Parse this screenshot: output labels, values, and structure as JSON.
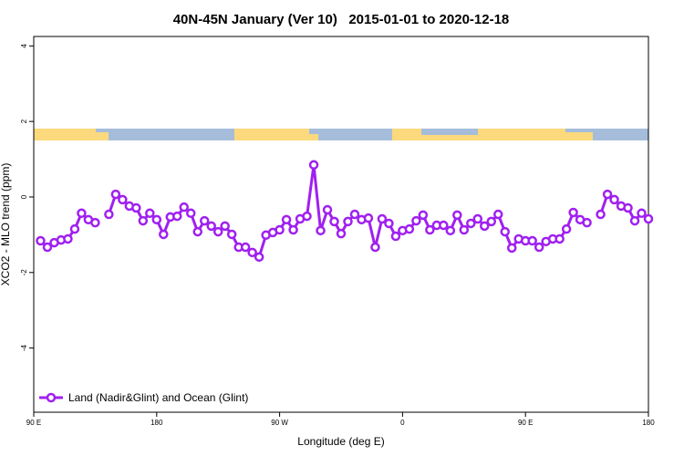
{
  "chart_data": {
    "type": "line",
    "title": "40N-45N January (Ver 10)   2015-01-01 to 2020-12-18",
    "xlabel": "Longitude (deg E)",
    "ylabel": "XCO2 - MLO trend (ppm)",
    "xlim": [
      90,
      540
    ],
    "ylim": [
      -5.7,
      4.25
    ],
    "xticks": [
      {
        "value": 90,
        "label": "90 E"
      },
      180,
      {
        "value": 270,
        "label": "90 W"
      },
      {
        "value": 360,
        "label": "0"
      },
      {
        "value": 450,
        "label": "90 E"
      },
      {
        "value": 540,
        "label": "180"
      }
    ],
    "yticks": [
      -4,
      -2,
      0,
      2,
      4
    ],
    "legend": "bottomleft",
    "x": [
      95,
      100,
      105,
      110,
      115,
      120,
      125,
      130,
      135,
      140,
      145,
      150,
      155,
      160,
      165,
      170,
      175,
      180,
      185,
      190,
      195,
      200,
      205,
      210,
      215,
      220,
      225,
      230,
      235,
      240,
      245,
      250,
      255,
      260,
      265,
      270,
      275,
      280,
      285,
      290,
      295,
      300,
      305,
      310,
      315,
      320,
      325,
      330,
      335,
      340,
      345,
      350,
      355,
      360,
      365,
      370,
      375,
      380,
      385,
      390,
      395,
      400,
      405,
      410,
      415,
      420,
      425,
      430,
      435,
      440,
      445,
      450,
      455,
      460,
      465,
      470,
      475,
      480,
      485,
      490,
      495,
      500,
      505,
      510,
      515,
      520,
      525,
      530,
      535,
      540
    ],
    "series": [
      {
        "name": "Land (Nadir&Glint) and Ocean (Glint)",
        "color": "#a020f0",
        "values": [
          -1.16,
          -1.33,
          -1.21,
          -1.14,
          -1.11,
          -0.85,
          -0.43,
          -0.6,
          -0.68,
          null,
          -0.46,
          0.07,
          -0.07,
          -0.24,
          -0.29,
          -0.63,
          -0.43,
          -0.6,
          -0.99,
          -0.53,
          -0.51,
          -0.27,
          -0.43,
          -0.92,
          -0.63,
          -0.77,
          -0.92,
          -0.77,
          -0.99,
          -1.33,
          -1.33,
          -1.47,
          -1.59,
          -1.01,
          -0.94,
          -0.87,
          -0.6,
          -0.87,
          -0.58,
          -0.51,
          0.85,
          -0.89,
          -0.34,
          -0.65,
          -0.97,
          -0.65,
          -0.46,
          -0.6,
          -0.56,
          -1.33,
          -0.58,
          -0.7,
          -1.04,
          -0.89,
          -0.85,
          -0.63,
          -0.48,
          -0.87,
          -0.75,
          -0.75,
          -0.89,
          -0.48,
          -0.87,
          -0.7,
          -0.58,
          -0.77,
          -0.65,
          -0.46,
          -0.92,
          -1.35,
          -1.11,
          -1.16,
          -1.16,
          -1.33,
          -1.18,
          -1.11,
          -1.11,
          -0.85,
          -0.41,
          -0.6,
          -0.68,
          null,
          -0.46,
          0.07,
          -0.07,
          -0.24,
          -0.29,
          -0.63,
          -0.43,
          -0.58
        ]
      }
    ]
  }
}
